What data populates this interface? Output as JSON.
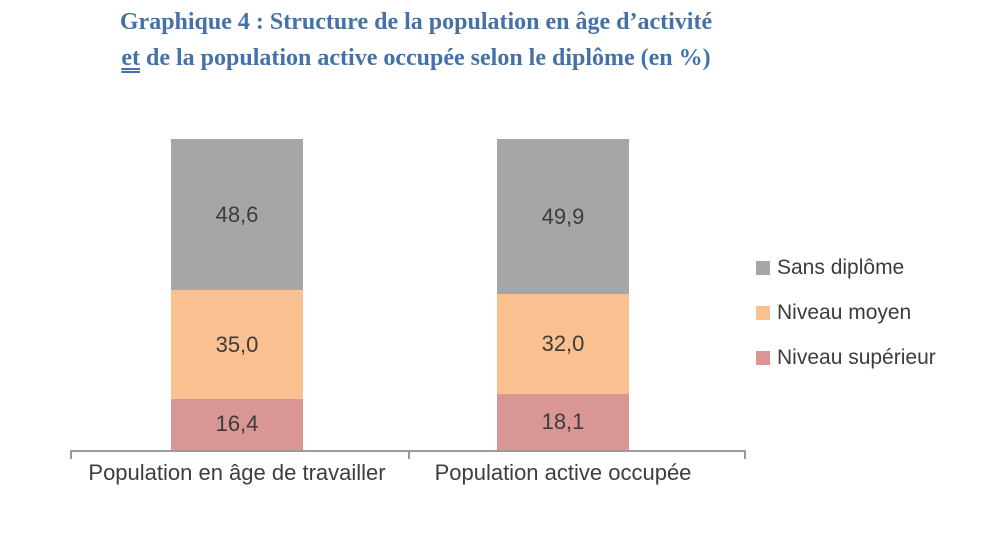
{
  "title": {
    "line1": "Graphique 4 : Structure de la population en âge d’activité",
    "line2_underlined": "et",
    "line2_rest": " de la population active occupée selon le diplôme (en %)"
  },
  "colors": {
    "title_blue": "#4472a8",
    "axis_gray": "#9b9b9b",
    "sans_diplome": "#a6a6a6",
    "niveau_moyen": "#fac090",
    "niveau_superieur": "#d99694"
  },
  "chart_data": {
    "type": "bar",
    "stacked": true,
    "unit": "%",
    "title": "Graphique 4 : Structure de la population en âge d’activité et de la population active occupée selon le diplôme (en %)",
    "categories": [
      "Population en âge de travailler",
      "Population active occupée"
    ],
    "series": [
      {
        "name": "Niveau supérieur",
        "color": "#d99694",
        "values": [
          16.4,
          18.1
        ],
        "labels": [
          "16,4",
          "18,1"
        ]
      },
      {
        "name": "Niveau moyen",
        "color": "#fac090",
        "values": [
          35.0,
          32.0
        ],
        "labels": [
          "35,0",
          "32,0"
        ]
      },
      {
        "name": "Sans diplôme",
        "color": "#a6a6a6",
        "values": [
          48.6,
          49.9
        ],
        "labels": [
          "48,6",
          "49,9"
        ]
      }
    ],
    "legend": {
      "position": "right",
      "order": [
        "Sans diplôme",
        "Niveau moyen",
        "Niveau supérieur"
      ]
    },
    "ylim": [
      0,
      100
    ],
    "grid": false,
    "y_axis_visible": false
  }
}
